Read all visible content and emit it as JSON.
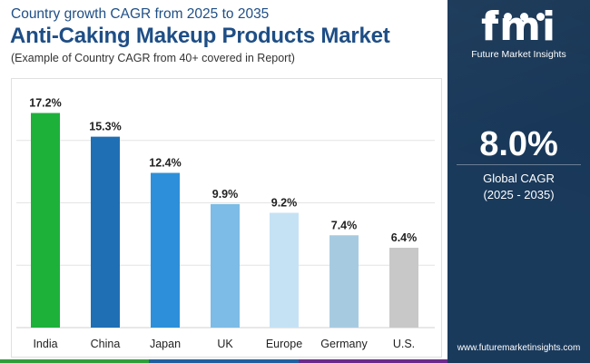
{
  "header": {
    "subtitle": "Country growth CAGR from 2025 to 2035",
    "title": "Anti-Caking Makeup Products Market",
    "note": "(Example of Country CAGR from 40+ covered in Report)"
  },
  "side_panel": {
    "logo_text": "fmi",
    "logo_subtitle": "Future Market Insights",
    "cagr_value": "8.0%",
    "cagr_label": "Global CAGR",
    "cagr_period": "(2025 - 2035)",
    "website": "www.futuremarketinsights.com",
    "background_color": "#1a3a5c"
  },
  "bottom_strip_colors": [
    "#2e9e3a",
    "#1f5fa0",
    "#6a2a8a"
  ],
  "chart_data": {
    "type": "bar",
    "categories": [
      "India",
      "China",
      "Japan",
      "UK",
      "Europe",
      "Germany",
      "U.S."
    ],
    "values": [
      17.2,
      15.3,
      12.4,
      9.9,
      9.2,
      7.4,
      6.4
    ],
    "value_labels": [
      "17.2%",
      "15.3%",
      "12.4%",
      "9.9%",
      "9.2%",
      "7.4%",
      "6.4%"
    ],
    "colors": [
      "#1db13a",
      "#1f6fb4",
      "#2d8fd9",
      "#7cbce6",
      "#c5e2f4",
      "#a6cbe1",
      "#c8c8c8"
    ],
    "ylim": [
      0,
      20
    ],
    "grid": true,
    "title": "",
    "xlabel": "",
    "ylabel": ""
  }
}
